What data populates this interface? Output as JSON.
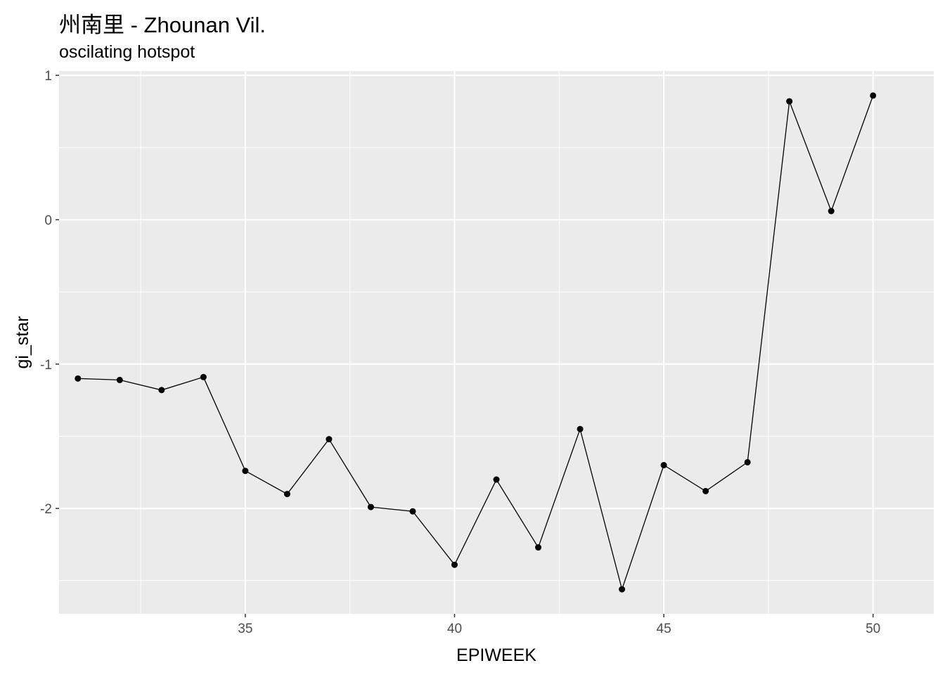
{
  "chart_data": {
    "type": "line",
    "title": "州南里 - Zhounan Vil.",
    "subtitle": "oscilating hotspot",
    "xlabel": "EPIWEEK",
    "ylabel": "gi_star",
    "xlim": [
      30.55,
      51.45
    ],
    "ylim": [
      -2.73,
      1.03
    ],
    "x_ticks": [
      35,
      40,
      45,
      50
    ],
    "x_minor": [
      32.5,
      37.5,
      42.5,
      47.5
    ],
    "y_ticks": [
      1,
      0,
      -1,
      -2
    ],
    "y_tick_labels": [
      "1",
      "0",
      "-1",
      "-2"
    ],
    "y_minor": [
      0.5,
      -0.5,
      -1.5,
      -2.5
    ],
    "grid": true,
    "background": "#ebebeb",
    "grid_color": "#ffffff",
    "line_color": "#000000",
    "x": [
      31,
      32,
      33,
      34,
      35,
      36,
      37,
      38,
      39,
      40,
      41,
      42,
      43,
      44,
      45,
      46,
      47,
      48,
      49,
      50
    ],
    "y": [
      -1.1,
      -1.11,
      -1.18,
      -1.09,
      -1.74,
      -1.9,
      -1.52,
      -1.99,
      -2.02,
      -2.39,
      -1.8,
      -2.27,
      -1.45,
      -2.56,
      -1.7,
      -1.88,
      -1.68,
      0.82,
      0.06,
      0.86
    ]
  }
}
